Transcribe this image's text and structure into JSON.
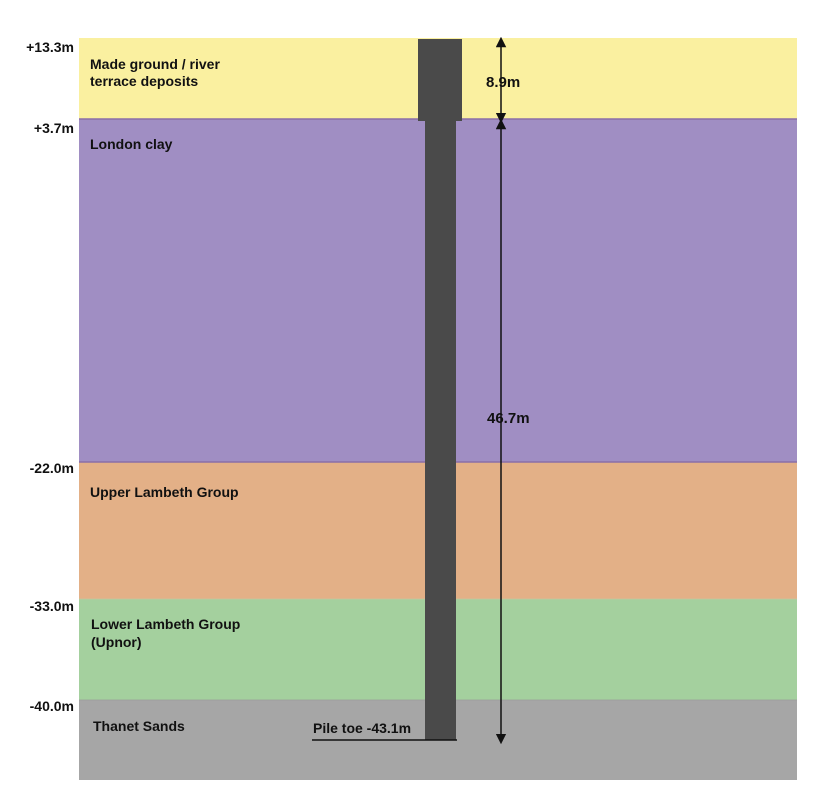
{
  "diagram": {
    "elevation_labels": [
      "+13.3m",
      "+3.7m",
      "-22.0m",
      "-33.0m",
      "-40.0m"
    ],
    "layers": [
      {
        "id": "made-ground",
        "label_lines": [
          "Made ground / river",
          "terrace deposits"
        ],
        "top_m": 13.3,
        "bottom_m": 3.7,
        "color": "#faf0a0"
      },
      {
        "id": "london-clay",
        "label_lines": [
          "London clay"
        ],
        "top_m": 3.7,
        "bottom_m": -22.0,
        "color": "#a08ec3"
      },
      {
        "id": "upper-lambeth",
        "label_lines": [
          "Upper Lambeth Group"
        ],
        "top_m": -22.0,
        "bottom_m": -33.0,
        "color": "#e3b087"
      },
      {
        "id": "lower-lambeth",
        "label_lines": [
          "Lower Lambeth Group",
          "(Upnor)"
        ],
        "top_m": -33.0,
        "bottom_m": -40.0,
        "color": "#a4d09e"
      },
      {
        "id": "thanet-sands",
        "label_lines": [
          "Thanet Sands"
        ],
        "top_m": -40.0,
        "bottom_m": null,
        "color": "#a6a6a6"
      }
    ],
    "dimensions": [
      {
        "id": "upper-dimension",
        "label": "8.9m"
      },
      {
        "id": "lower-dimension",
        "label": "46.7m"
      }
    ],
    "pile": {
      "toe_label": "Pile toe -43.1m",
      "toe_m": -43.1,
      "color": "#4a4a4a"
    },
    "colors": {
      "boundary_line": "#8a6fa8",
      "arrow": "#111111"
    }
  }
}
